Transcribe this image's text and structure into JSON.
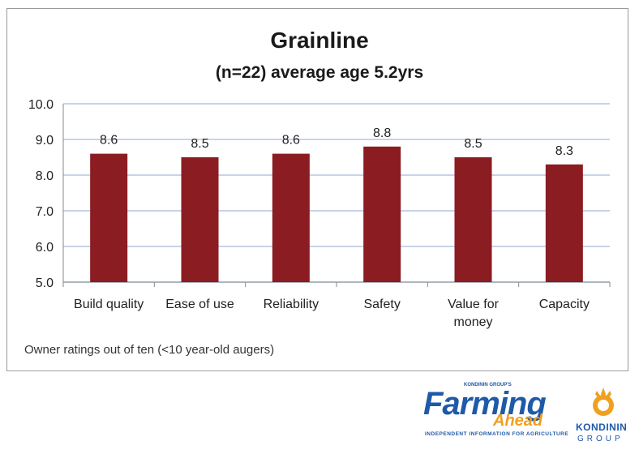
{
  "chart_data": {
    "type": "bar",
    "title": "Grainline",
    "subtitle": "(n=22) average age 5.2yrs",
    "categories": [
      "Build quality",
      "Ease of use",
      "Reliability",
      "Safety",
      "Value for\nmoney",
      "Capacity"
    ],
    "values": [
      8.6,
      8.5,
      8.6,
      8.8,
      8.5,
      8.3
    ],
    "data_labels": [
      "8.6",
      "8.5",
      "8.6",
      "8.8",
      "8.5",
      "8.3"
    ],
    "ylim": [
      5.0,
      10.0
    ],
    "yticks": [
      "5.0",
      "6.0",
      "7.0",
      "8.0",
      "9.0",
      "10.0"
    ],
    "grid": true,
    "legend": "none",
    "bar_color": "#8b1c22",
    "gridline_color": "#b4c6e4"
  },
  "footnote": "Owner ratings out of ten (<10 year-old augers)",
  "branding": {
    "farming_ahead": {
      "kicker": "KONDININ GROUP'S",
      "word1": "Farming",
      "word2": "Ahead",
      "tagline": "INDEPENDENT INFORMATION FOR AGRICULTURE"
    },
    "kondinin": {
      "name": "KONDININ",
      "group": "GROUP"
    }
  }
}
